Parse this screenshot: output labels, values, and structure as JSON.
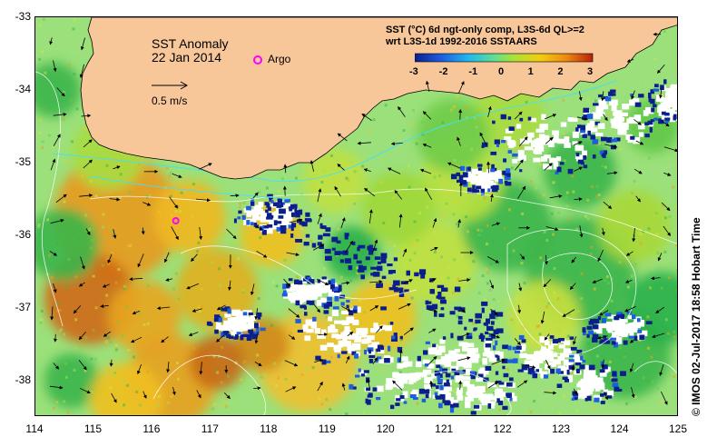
{
  "map": {
    "title": "SST Anomaly",
    "date": "22 Jan 2014",
    "argo_label": "Argo",
    "scale_label": "0.5 m/s",
    "legend_title_line1": "SST (°C) 6d ngt-only comp, L3S-6d QL>=2",
    "legend_title_line2": "wrt L3S-1d 1992-2016 SSTAARS",
    "colorbar_ticks": [
      "-3",
      "-2",
      "-1",
      "0",
      "1",
      "2",
      "3"
    ],
    "colorbar_range": [
      -3,
      3
    ],
    "y_ticks": [
      "-33",
      "-34",
      "-35",
      "-36",
      "-37",
      "-38"
    ],
    "x_ticks": [
      "114",
      "115",
      "116",
      "117",
      "118",
      "119",
      "120",
      "121",
      "122",
      "123",
      "124",
      "125"
    ],
    "lon_range": [
      114,
      125
    ],
    "lat_range": [
      -38.5,
      -33
    ],
    "argo_float": {
      "lon": 116.4,
      "lat": -35.8
    },
    "credit": "© IMOS 02-Jul-2017 18:58 Hobart Time",
    "colors": {
      "land": "#f7c79a",
      "argo": "#ff00ff",
      "contour": "#ffffff",
      "coast_stream": "#40e0ff"
    }
  }
}
